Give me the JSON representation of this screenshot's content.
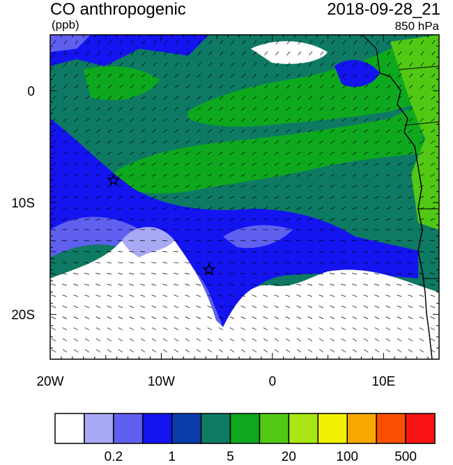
{
  "header": {
    "title": "CO anthropogenic",
    "units": "(ppb)",
    "datetime": "2018-09-28_21",
    "level": "850 hPa"
  },
  "axes": {
    "x_ticks": [
      {
        "lon": -20,
        "label": "20W"
      },
      {
        "lon": -10,
        "label": "10W"
      },
      {
        "lon": 0,
        "label": "0"
      },
      {
        "lon": 10,
        "label": "10E"
      }
    ],
    "y_ticks": [
      {
        "lat": 0,
        "label": "0"
      },
      {
        "lat": -10,
        "label": "10S"
      },
      {
        "lat": -20,
        "label": "20S"
      }
    ],
    "lon_range": [
      -20,
      15
    ],
    "lat_range": [
      -24,
      5
    ]
  },
  "markers": [
    {
      "lon": -14.3,
      "lat": -8.0,
      "symbol": "star"
    },
    {
      "lon": -5.7,
      "lat": -16.0,
      "symbol": "star"
    }
  ],
  "colorbar": {
    "colors": [
      "#ffffff",
      "#a8a8f4",
      "#5f5ff0",
      "#1414f0",
      "#0a3caa",
      "#0e7a64",
      "#0ea81e",
      "#50c814",
      "#a8e614",
      "#f0f000",
      "#f8a800",
      "#f85000",
      "#f81414"
    ],
    "labels": [
      {
        "after_box": 2,
        "text": "0.2"
      },
      {
        "after_box": 4,
        "text": "1"
      },
      {
        "after_box": 6,
        "text": "5"
      },
      {
        "after_box": 8,
        "text": "20"
      },
      {
        "after_box": 10,
        "text": "100"
      },
      {
        "after_box": 12,
        "text": "500"
      }
    ]
  }
}
